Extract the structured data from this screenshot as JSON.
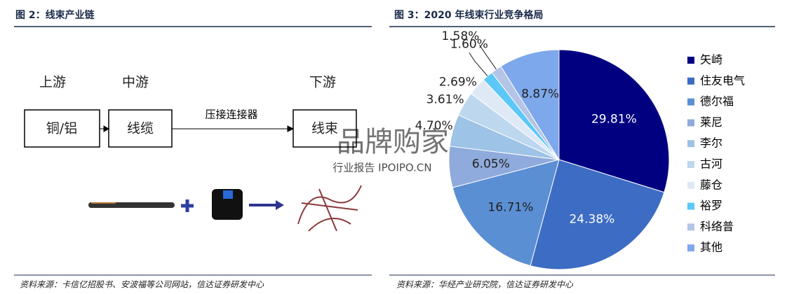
{
  "left": {
    "title": "图 2：线束产业链",
    "stages": [
      "上游",
      "中游",
      "下游"
    ],
    "boxes": [
      "铜/铝",
      "线缆",
      "线束"
    ],
    "arrow_label": "压接连接器",
    "source": "资料来源：卡信亿招股书、安波福等公司网站，信达证券研发中心"
  },
  "watermark": {
    "brand": "品牌购家",
    "site": "行业报告 IPOIPO.CN"
  },
  "chart_data": {
    "type": "pie",
    "title": "图 3：2020 年线束行业竞争格局",
    "categories": [
      "矢崎",
      "住友电气",
      "德尔福",
      "莱尼",
      "李尔",
      "古河",
      "藤仓",
      "裕罗",
      "科络普",
      "其他"
    ],
    "values": [
      29.81,
      24.38,
      16.71,
      6.05,
      4.7,
      3.61,
      2.69,
      1.6,
      1.58,
      8.87
    ],
    "value_labels": [
      "29.81%",
      "24.38%",
      "16.71%",
      "6.05%",
      "4.70%",
      "3.61%",
      "2.69%",
      "1.60%",
      "1.58%",
      "8.87%"
    ],
    "colors": [
      "#000080",
      "#3d6cc4",
      "#5b8fd3",
      "#8faadc",
      "#9dc3e6",
      "#bdd7ee",
      "#dfe9f6",
      "#5cc8f7",
      "#b4c4e6",
      "#7ea8ec"
    ],
    "legend": "right",
    "source": "资料来源：华经产业研究院，信达证券研发中心"
  }
}
